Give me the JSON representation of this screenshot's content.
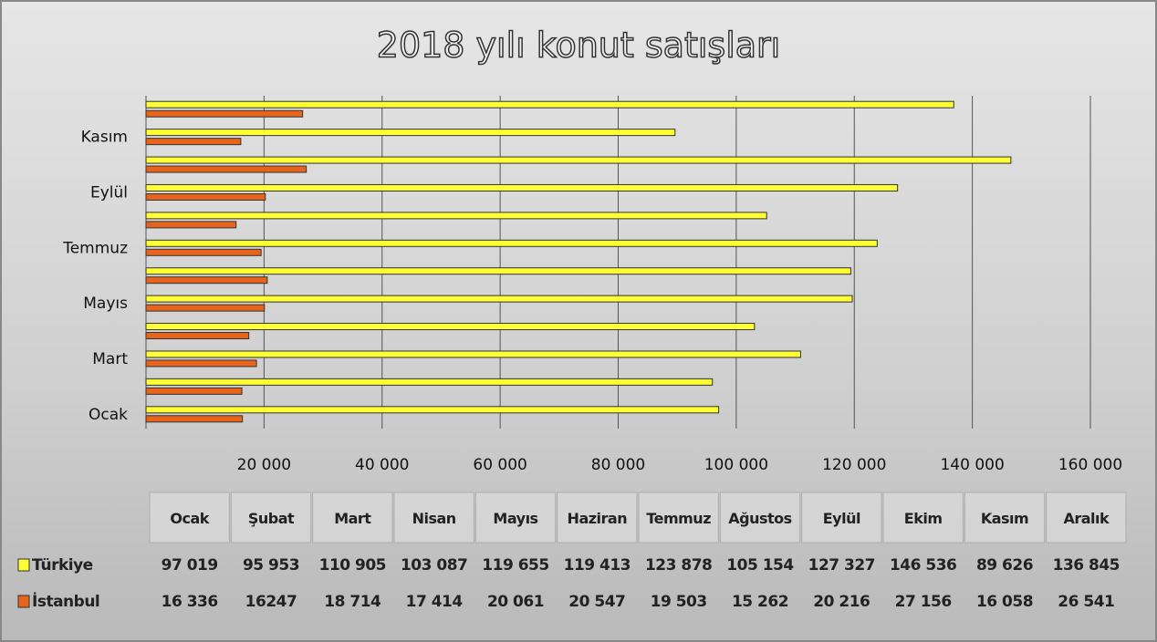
{
  "chart_data": {
    "type": "bar",
    "orientation": "horizontal",
    "title": "2018 yılı konut satışları",
    "categories": [
      "Ocak",
      "Şubat",
      "Mart",
      "Nisan",
      "Mayıs",
      "Haziran",
      "Temmuz",
      "Ağustos",
      "Eylül",
      "Ekim",
      "Kasım",
      "Aralık"
    ],
    "series": [
      {
        "name": "Türkiye",
        "color": "#ffff33",
        "values": [
          97019,
          95953,
          110905,
          103087,
          119655,
          119413,
          123878,
          105154,
          127327,
          146536,
          89626,
          136845
        ],
        "value_labels": [
          "97 019",
          "95 953",
          "110 905",
          "103 087",
          "119 655",
          "119 413",
          "123 878",
          "105 154",
          "127 327",
          "146 536",
          "89 626",
          "136 845"
        ]
      },
      {
        "name": "İstanbul",
        "color": "#e8641b",
        "values": [
          16336,
          16247,
          18714,
          17414,
          20061,
          20547,
          19503,
          15262,
          20216,
          27156,
          16058,
          26541
        ],
        "value_labels": [
          "16 336",
          "16247",
          "18 714",
          "17 414",
          "20 061",
          "20 547",
          "19 503",
          "15 262",
          "20 216",
          "27 156",
          "16 058",
          "26 541"
        ]
      }
    ],
    "xlim": [
      0,
      160000
    ],
    "xticks": [
      {
        "value": 20000,
        "label": "20 000"
      },
      {
        "value": 40000,
        "label": "40 000"
      },
      {
        "value": 60000,
        "label": "60 000"
      },
      {
        "value": 80000,
        "label": "80 000"
      },
      {
        "value": 100000,
        "label": "100 000"
      },
      {
        "value": 120000,
        "label": "120 000"
      },
      {
        "value": 140000,
        "label": "140 000"
      },
      {
        "value": 160000,
        "label": "160 000"
      }
    ],
    "grid": true
  }
}
